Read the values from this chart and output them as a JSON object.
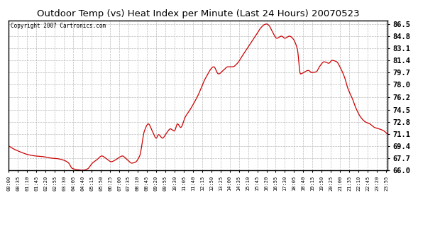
{
  "title": "Outdoor Temp (vs) Heat Index per Minute (Last 24 Hours) 20070523",
  "copyright": "Copyright 2007 Cartronics.com",
  "line_color": "#cc0000",
  "background_color": "#ffffff",
  "grid_color": "#bbbbbb",
  "ylim": [
    66.0,
    87.0
  ],
  "yticks": [
    66.0,
    67.7,
    69.4,
    71.1,
    72.8,
    74.5,
    76.2,
    78.0,
    79.7,
    81.4,
    83.1,
    84.8,
    86.5
  ],
  "xtick_labels": [
    "00:00",
    "00:35",
    "01:10",
    "01:45",
    "02:20",
    "02:55",
    "03:30",
    "04:05",
    "04:40",
    "05:15",
    "05:50",
    "06:25",
    "07:00",
    "07:35",
    "08:10",
    "08:45",
    "09:20",
    "09:55",
    "10:30",
    "11:05",
    "11:40",
    "12:15",
    "12:50",
    "13:25",
    "14:00",
    "14:35",
    "15:10",
    "15:45",
    "16:20",
    "16:55",
    "17:30",
    "18:05",
    "18:40",
    "19:15",
    "19:50",
    "20:25",
    "21:00",
    "21:35",
    "22:10",
    "22:45",
    "23:20",
    "23:55"
  ],
  "curve_keypoints": {
    "hours": [
      0,
      0.3,
      0.7,
      1.2,
      1.7,
      2.2,
      2.7,
      3.0,
      3.5,
      3.8,
      4.0,
      4.3,
      4.7,
      5.0,
      5.3,
      5.6,
      5.9,
      6.2,
      6.5,
      6.8,
      7.0,
      7.2,
      7.5,
      7.8,
      8.0,
      8.3,
      8.6,
      8.85,
      9.1,
      9.35,
      9.5,
      9.75,
      10.0,
      10.25,
      10.5,
      10.7,
      10.9,
      11.2,
      11.5,
      12.0,
      12.5,
      13.0,
      13.3,
      13.6,
      13.9,
      14.2,
      14.5,
      14.8,
      15.1,
      15.4,
      15.7,
      16.0,
      16.2,
      16.35,
      16.5,
      16.7,
      17.0,
      17.3,
      17.5,
      17.8,
      18.0,
      18.3,
      18.5,
      18.7,
      19.0,
      19.2,
      19.5,
      19.7,
      20.0,
      20.3,
      20.5,
      20.8,
      21.0,
      21.3,
      21.5,
      21.8,
      22.0,
      22.3,
      22.6,
      22.9,
      23.2,
      23.5,
      23.8,
      24.0
    ],
    "values": [
      69.4,
      69.0,
      68.6,
      68.2,
      68.0,
      67.9,
      67.7,
      67.65,
      67.4,
      67.0,
      66.3,
      66.1,
      66.0,
      66.2,
      67.0,
      67.5,
      68.0,
      67.6,
      67.2,
      67.5,
      67.8,
      68.0,
      67.5,
      67.0,
      67.1,
      68.0,
      71.5,
      72.5,
      71.5,
      70.5,
      71.0,
      70.5,
      71.2,
      71.8,
      71.5,
      72.5,
      72.0,
      73.5,
      74.5,
      76.5,
      79.0,
      80.5,
      79.5,
      80.0,
      80.5,
      80.5,
      81.0,
      82.0,
      83.0,
      84.0,
      85.0,
      86.0,
      86.4,
      86.5,
      86.3,
      85.5,
      84.5,
      84.8,
      84.5,
      84.8,
      84.5,
      83.0,
      79.5,
      79.7,
      80.0,
      79.7,
      79.8,
      80.5,
      81.2,
      81.0,
      81.4,
      81.2,
      80.5,
      79.0,
      77.5,
      76.0,
      74.8,
      73.5,
      72.8,
      72.5,
      72.0,
      71.8,
      71.5,
      71.1
    ]
  }
}
